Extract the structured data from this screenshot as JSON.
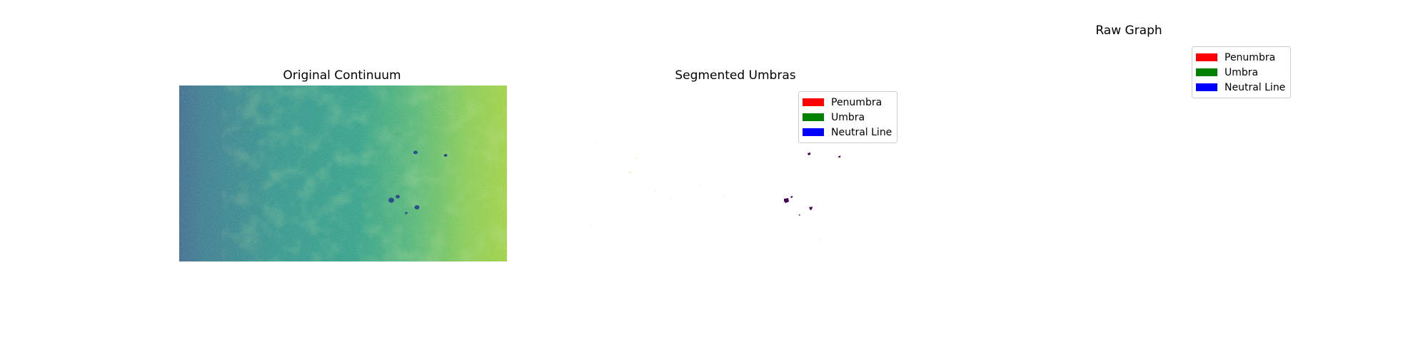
{
  "panels": [
    {
      "title": "Original Continuum"
    },
    {
      "title": "Segmented Umbras"
    },
    {
      "title": "Raw Graph"
    }
  ],
  "legend": {
    "entries": [
      {
        "label": "Penumbra",
        "color": "#ff0000"
      },
      {
        "label": "Umbra",
        "color": "#008000"
      },
      {
        "label": "Neutral Line",
        "color": "#0000ff"
      }
    ]
  },
  "colormap": "viridis",
  "colors": {
    "continuum_dark": "#31688e",
    "continuum_mid": "#21918c",
    "continuum_bright": "#a0da39",
    "sunspot": "#440154",
    "speck": "#fde725"
  }
}
